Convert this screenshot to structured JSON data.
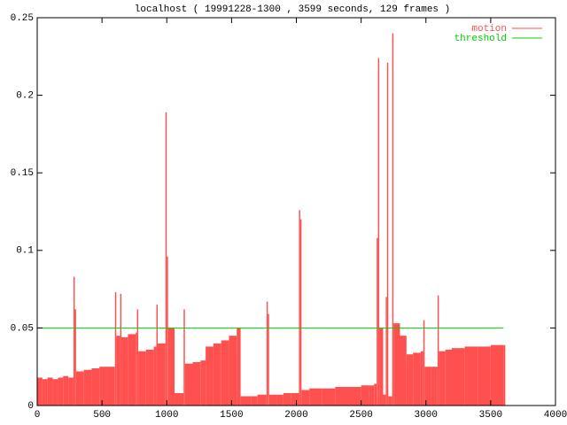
{
  "chart_data": {
    "type": "impulse",
    "title": "localhost ( 19991228-1300 , 3599 seconds, 129 frames )",
    "xlim": [
      0,
      4000
    ],
    "xticks": [
      0,
      500,
      1000,
      1500,
      2000,
      2500,
      3000,
      3500,
      4000
    ],
    "ylim": [
      0,
      0.25
    ],
    "yticks": [
      0,
      0.05,
      0.1,
      0.15,
      0.2,
      0.25
    ],
    "legend": "top-right",
    "series": [
      {
        "name": "motion",
        "color": "#ff5050",
        "x": [
          0,
          40,
          80,
          120,
          160,
          200,
          240,
          280,
          290,
          300,
          360,
          420,
          480,
          540,
          600,
          610,
          640,
          650,
          700,
          760,
          770,
          780,
          840,
          900,
          920,
          930,
          990,
          1000,
          1010,
          1060,
          1130,
          1140,
          1200,
          1260,
          1300,
          1360,
          1420,
          1480,
          1540,
          1570,
          1650,
          1700,
          1770,
          1780,
          1790,
          1850,
          1900,
          1960,
          2020,
          2030,
          2040,
          2100,
          2200,
          2300,
          2400,
          2500,
          2560,
          2600,
          2620,
          2630,
          2640,
          2670,
          2690,
          2700,
          2710,
          2740,
          2750,
          2800,
          2850,
          2900,
          2960,
          2980,
          2990,
          3040,
          3090,
          3100,
          3150,
          3200,
          3300,
          3400,
          3500,
          3599
        ],
        "values": [
          0.018,
          0.017,
          0.018,
          0.017,
          0.018,
          0.019,
          0.018,
          0.083,
          0.062,
          0.022,
          0.023,
          0.024,
          0.025,
          0.025,
          0.073,
          0.045,
          0.072,
          0.044,
          0.046,
          0.047,
          0.062,
          0.035,
          0.036,
          0.038,
          0.065,
          0.04,
          0.189,
          0.096,
          0.05,
          0.008,
          0.062,
          0.027,
          0.028,
          0.029,
          0.038,
          0.04,
          0.042,
          0.045,
          0.05,
          0.006,
          0.006,
          0.007,
          0.067,
          0.059,
          0.007,
          0.007,
          0.008,
          0.008,
          0.126,
          0.12,
          0.01,
          0.011,
          0.011,
          0.012,
          0.012,
          0.013,
          0.013,
          0.014,
          0.108,
          0.224,
          0.05,
          0.007,
          0.07,
          0.221,
          0.006,
          0.24,
          0.053,
          0.045,
          0.033,
          0.034,
          0.035,
          0.055,
          0.025,
          0.025,
          0.071,
          0.035,
          0.036,
          0.037,
          0.038,
          0.038,
          0.039,
          0.039
        ]
      },
      {
        "name": "threshold",
        "color": "#00d000",
        "x": [
          0,
          3599
        ],
        "values": [
          0.05,
          0.05
        ]
      }
    ]
  }
}
